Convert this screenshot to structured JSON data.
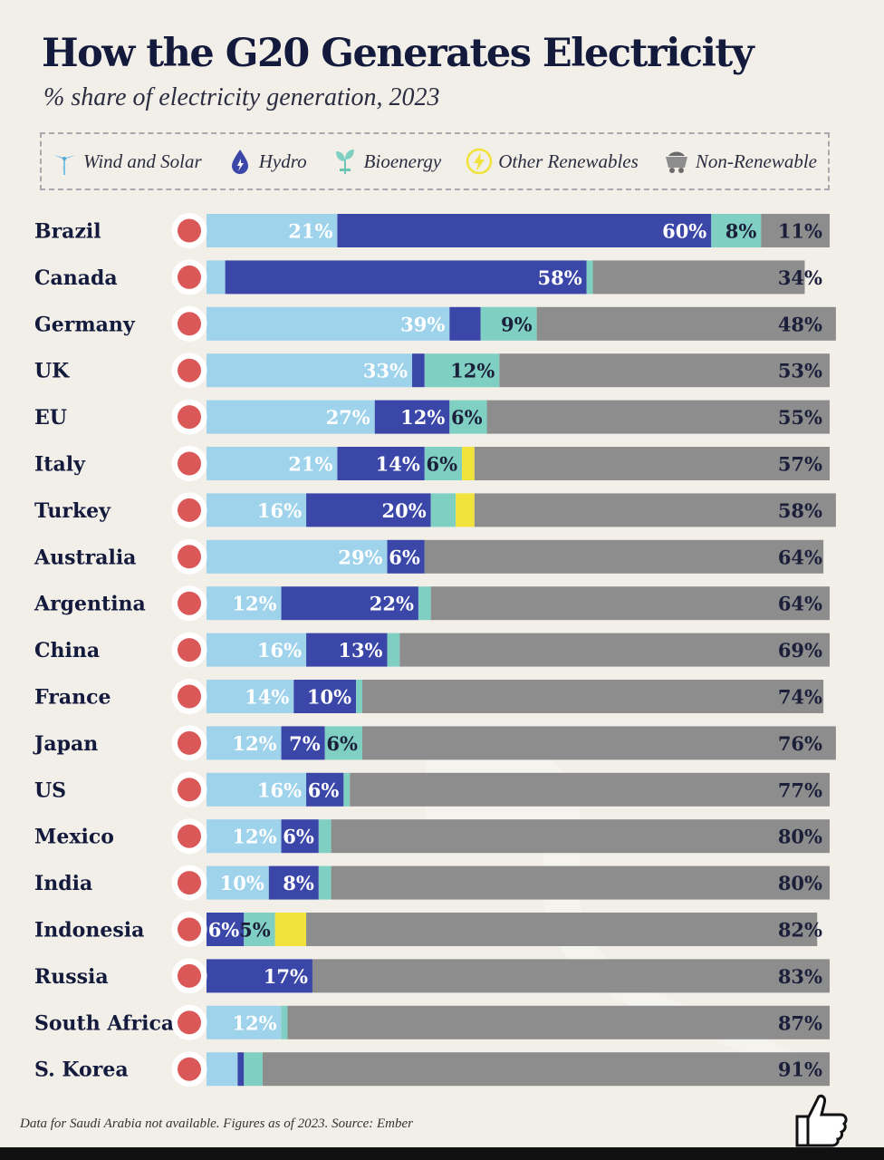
{
  "title": "How the G20 Generates Electricity",
  "subtitle": "% share of electricity generation, 2023",
  "legend": [
    {
      "label": "Wind and Solar",
      "icon": "wind-turbine-icon",
      "color": "#9fd3ec"
    },
    {
      "label": "Hydro",
      "icon": "water-drop-icon",
      "color": "#3a46a8"
    },
    {
      "label": "Bioenergy",
      "icon": "plant-icon",
      "color": "#7fcfc3"
    },
    {
      "label": "Other Renewables",
      "icon": "lightning-icon",
      "color": "#f1e33c"
    },
    {
      "label": "Non-Renewable",
      "icon": "mine-cart-icon",
      "color": "#8d8d8d"
    }
  ],
  "chart_data": {
    "type": "bar",
    "orientation": "horizontal",
    "stacked": true,
    "unit": "%",
    "categories": [
      "Brazil",
      "Canada",
      "Germany",
      "UK",
      "EU",
      "Italy",
      "Turkey",
      "Australia",
      "Argentina",
      "China",
      "France",
      "Japan",
      "US",
      "Mexico",
      "India",
      "Indonesia",
      "Russia",
      "South Africa",
      "S. Korea"
    ],
    "flags": [
      "brazil-flag-icon",
      "canada-flag-icon",
      "germany-flag-icon",
      "uk-flag-icon",
      "eu-flag-icon",
      "italy-flag-icon",
      "turkey-flag-icon",
      "australia-flag-icon",
      "argentina-flag-icon",
      "china-flag-icon",
      "france-flag-icon",
      "japan-flag-icon",
      "us-flag-icon",
      "mexico-flag-icon",
      "india-flag-icon",
      "indonesia-flag-icon",
      "russia-flag-icon",
      "south-africa-flag-icon",
      "south-korea-flag-icon"
    ],
    "series": [
      {
        "name": "Wind and Solar",
        "color": "#9fd3ec",
        "values": [
          21,
          3,
          39,
          33,
          27,
          21,
          16,
          29,
          12,
          16,
          14,
          12,
          16,
          12,
          10,
          0,
          0,
          12,
          5
        ]
      },
      {
        "name": "Hydro",
        "color": "#3a46a8",
        "values": [
          60,
          58,
          5,
          2,
          12,
          14,
          20,
          6,
          22,
          13,
          10,
          7,
          6,
          6,
          8,
          6,
          17,
          0,
          1
        ]
      },
      {
        "name": "Bioenergy",
        "color": "#7fcfc3",
        "values": [
          8,
          1,
          9,
          12,
          6,
          6,
          4,
          0,
          2,
          2,
          1,
          6,
          1,
          2,
          2,
          5,
          0,
          1,
          3
        ]
      },
      {
        "name": "Other Renewables",
        "color": "#f1e33c",
        "values": [
          0,
          0,
          0,
          0,
          0,
          2,
          3,
          0,
          0,
          0,
          0,
          0,
          0,
          0,
          0,
          5,
          0,
          0,
          0
        ]
      },
      {
        "name": "Non-Renewable",
        "color": "#8d8d8d",
        "values": [
          11,
          34,
          48,
          53,
          55,
          57,
          58,
          64,
          64,
          69,
          74,
          76,
          77,
          80,
          80,
          82,
          83,
          87,
          91
        ]
      }
    ],
    "labels": [
      [
        "21%",
        "60%",
        "8%",
        "",
        "11%"
      ],
      [
        "",
        "58%",
        "",
        "",
        "34%"
      ],
      [
        "39%",
        "",
        "9%",
        "",
        "48%"
      ],
      [
        "33%",
        "",
        "12%",
        "",
        "53%"
      ],
      [
        "27%",
        "12%",
        "6%",
        "",
        "55%"
      ],
      [
        "21%",
        "14%",
        "6%",
        "",
        "57%"
      ],
      [
        "16%",
        "20%",
        "",
        "",
        "58%"
      ],
      [
        "29%",
        "6%",
        "",
        "",
        "64%"
      ],
      [
        "12%",
        "22%",
        "",
        "",
        "64%"
      ],
      [
        "16%",
        "13%",
        "",
        "",
        "69%"
      ],
      [
        "14%",
        "10%",
        "",
        "",
        "74%"
      ],
      [
        "12%",
        "7%",
        "6%",
        "",
        "76%"
      ],
      [
        "16%",
        "6%",
        "",
        "",
        "77%"
      ],
      [
        "12%",
        "6%",
        "",
        "",
        "80%"
      ],
      [
        "10%",
        "8%",
        "",
        "",
        "80%"
      ],
      [
        "",
        "6%",
        "5%",
        "",
        "82%"
      ],
      [
        "",
        "17%",
        "",
        "",
        "83%"
      ],
      [
        "12%",
        "",
        "",
        "",
        "87%"
      ],
      [
        "",
        "",
        "",
        "",
        "91%"
      ]
    ],
    "xlim": [
      0,
      100
    ]
  },
  "footer": "Data for Saudi Arabia not available. Figures as of 2023. Source: Ember"
}
